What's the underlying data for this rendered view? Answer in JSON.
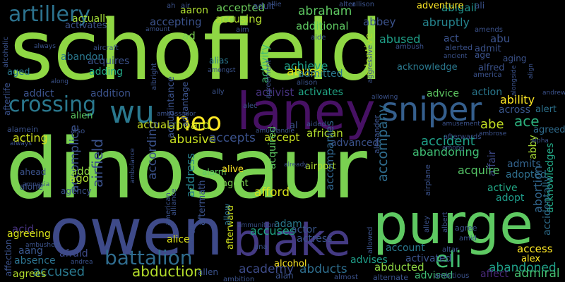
{
  "cloud": {
    "words": [
      {
        "text": "schofield",
        "color": "#8fd744"
      },
      {
        "text": "dinosaur",
        "color": "#7ad151"
      },
      {
        "text": "owen",
        "color": "#3e4a89"
      },
      {
        "text": "purge",
        "color": "#5ec962"
      },
      {
        "text": "laney",
        "color": "#471164"
      },
      {
        "text": "blake",
        "color": "#443a83"
      },
      {
        "text": "wu",
        "color": "#2a788e"
      },
      {
        "text": "sniper",
        "color": "#355f8d"
      },
      {
        "text": "neo",
        "color": "#fde725"
      },
      {
        "text": "artillery",
        "color": "#2c728e"
      },
      {
        "text": "crossing",
        "color": "#2a788e"
      },
      {
        "text": "battalion",
        "color": "#2f6c8e"
      },
      {
        "text": "eli",
        "color": "#42be71"
      },
      {
        "text": "abduction",
        "color": "#b5de2b"
      },
      {
        "text": "accused",
        "color": "#2a788e"
      },
      {
        "text": "actually",
        "color": "#a2da37"
      },
      {
        "text": "airfield",
        "color": "#3b528b"
      },
      {
        "text": "abusive",
        "color": "#c8e020"
      },
      {
        "text": "academy",
        "color": "#3e4c8a"
      },
      {
        "text": "accepted",
        "color": "#6ccd5a"
      },
      {
        "text": "abraham",
        "color": "#5ec962"
      },
      {
        "text": "abigail",
        "color": "#1f948c"
      },
      {
        "text": "abruptly",
        "color": "#25848e"
      },
      {
        "text": "abused",
        "color": "#1f9f88"
      },
      {
        "text": "accompany",
        "color": "#2f6c8e"
      },
      {
        "text": "accident",
        "color": "#1fa088"
      },
      {
        "text": "abandoning",
        "color": "#3fbc73"
      },
      {
        "text": "abandoned",
        "color": "#1fa088"
      },
      {
        "text": "african",
        "color": "#b2dd2d"
      },
      {
        "text": "accept",
        "color": "#c8e020"
      },
      {
        "text": "accepts",
        "color": "#3b528b"
      },
      {
        "text": "aboard",
        "color": "#c2df23"
      },
      {
        "text": "according",
        "color": "#3b528b"
      },
      {
        "text": "accomplice",
        "color": "#3b528b"
      },
      {
        "text": "acting",
        "color": "#d0e11c"
      },
      {
        "text": "add",
        "color": "#8fd744"
      },
      {
        "text": "ago",
        "color": "#addc30"
      },
      {
        "text": "address",
        "color": "#26828e"
      },
      {
        "text": "accusing",
        "color": "#b2dd2d"
      },
      {
        "text": "activity",
        "color": "#3fbc73"
      },
      {
        "text": "achieve",
        "color": "#1fa088"
      },
      {
        "text": "abuse",
        "color": "#dde318"
      },
      {
        "text": "activist",
        "color": "#46327e"
      },
      {
        "text": "activates",
        "color": "#21a685"
      },
      {
        "text": "advice",
        "color": "#5ec962"
      },
      {
        "text": "action",
        "color": "#2a788e"
      },
      {
        "text": "ability",
        "color": "#fde725"
      },
      {
        "text": "ace",
        "color": "#2cb17e"
      },
      {
        "text": "abe",
        "color": "#c2df23"
      },
      {
        "text": "across",
        "color": "#39568c"
      },
      {
        "text": "alert",
        "color": "#2c728e"
      },
      {
        "text": "agreed",
        "color": "#2f6c8e"
      },
      {
        "text": "abby",
        "color": "#a8db34"
      },
      {
        "text": "affair",
        "color": "#3e4a89"
      },
      {
        "text": "admits",
        "color": "#33638d"
      },
      {
        "text": "adopted",
        "color": "#2e6f8e"
      },
      {
        "text": "acquire",
        "color": "#56c667"
      },
      {
        "text": "active",
        "color": "#22a785"
      },
      {
        "text": "adopt",
        "color": "#1e9b8a"
      },
      {
        "text": "abortion",
        "color": "#31668e"
      },
      {
        "text": "acknowledges",
        "color": "#22a785"
      },
      {
        "text": "accidentally",
        "color": "#2e6e8e"
      },
      {
        "text": "admiral",
        "color": "#44bf70"
      },
      {
        "text": "access",
        "color": "#fde725"
      },
      {
        "text": "alex",
        "color": "#fde725"
      },
      {
        "text": "affect",
        "color": "#482979"
      },
      {
        "text": "advised",
        "color": "#3fbc73"
      },
      {
        "text": "abducted",
        "color": "#8fd744"
      },
      {
        "text": "abducts",
        "color": "#2e6e8e"
      },
      {
        "text": "advises",
        "color": "#1f9e89"
      },
      {
        "text": "account",
        "color": "#2a788e"
      },
      {
        "text": "activated",
        "color": "#3b528b"
      },
      {
        "text": "accuses",
        "color": "#20a486"
      },
      {
        "text": "actress",
        "color": "#3b528b"
      },
      {
        "text": "actor",
        "color": "#39568c"
      },
      {
        "text": "adam",
        "color": "#2a788e"
      },
      {
        "text": "afford",
        "color": "#d8e219"
      },
      {
        "text": "acquired",
        "color": "#5ec962"
      },
      {
        "text": "alive",
        "color": "#fde725"
      },
      {
        "text": "agent",
        "color": "#7ad151"
      },
      {
        "text": "airport",
        "color": "#addc30"
      },
      {
        "text": "advanced",
        "color": "#3b528b"
      },
      {
        "text": "accompanies",
        "color": "#31668e"
      },
      {
        "text": "alarm",
        "color": "#5ec962"
      },
      {
        "text": "actual",
        "color": "#c8e020"
      },
      {
        "text": "aftermath",
        "color": "#3b528b"
      },
      {
        "text": "afterward",
        "color": "#d0e11c"
      },
      {
        "text": "allow",
        "color": "#2c728e"
      },
      {
        "text": "alice",
        "color": "#dde318"
      },
      {
        "text": "alcohol",
        "color": "#fde725"
      },
      {
        "text": "alien",
        "color": "#5ec962"
      },
      {
        "text": "absence",
        "color": "#2c728e"
      },
      {
        "text": "acid",
        "color": "#46327e"
      },
      {
        "text": "aang",
        "color": "#39568c"
      },
      {
        "text": "afraid",
        "color": "#3e4a89"
      },
      {
        "text": "agrees",
        "color": "#b2dd2d"
      },
      {
        "text": "agreeing",
        "color": "#d8e219"
      },
      {
        "text": "agency",
        "color": "#3b528b"
      },
      {
        "text": "ahead",
        "color": "#3b528b"
      },
      {
        "text": "alone",
        "color": "#3b528b"
      },
      {
        "text": "addict",
        "color": "#3b528b"
      },
      {
        "text": "addition",
        "color": "#3b528b"
      },
      {
        "text": "aged",
        "color": "#2a788e"
      },
      {
        "text": "adding",
        "color": "#22a785"
      },
      {
        "text": "acquires",
        "color": "#3b528b"
      },
      {
        "text": "abandon",
        "color": "#2a788e"
      },
      {
        "text": "activates",
        "color": "#3b528b"
      },
      {
        "text": "accepting",
        "color": "#3b528b"
      },
      {
        "text": "aaron",
        "color": "#addc30"
      },
      {
        "text": "ad",
        "color": "#7ad151"
      },
      {
        "text": "adult",
        "color": "#3b528b"
      },
      {
        "text": "additional",
        "color": "#5ec962"
      },
      {
        "text": "abbey",
        "color": "#3b528b"
      },
      {
        "text": "act",
        "color": "#3b528b"
      },
      {
        "text": "abu",
        "color": "#3b528b"
      },
      {
        "text": "admit",
        "color": "#3b528b"
      },
      {
        "text": "age",
        "color": "#3b528b"
      },
      {
        "text": "aging",
        "color": "#3b528b"
      },
      {
        "text": "alfred",
        "color": "#3b528b"
      },
      {
        "text": "alias",
        "color": "#2a788e"
      },
      {
        "text": "admitted",
        "color": "#2a788e"
      },
      {
        "text": "adoptive",
        "color": "#addc30"
      },
      {
        "text": "acknowledge",
        "color": "#2a788e"
      },
      {
        "text": "adventure",
        "color": "#fde725"
      },
      {
        "text": "ali",
        "color": "#3b528b"
      },
      {
        "text": "alter",
        "color": "#3b528b"
      },
      {
        "text": "allison",
        "color": "#3b528b"
      },
      {
        "text": "allie",
        "color": "#3b528b"
      },
      {
        "text": "aim",
        "color": "#3b528b"
      },
      {
        "text": "ah",
        "color": "#3b528b"
      },
      {
        "text": "air",
        "color": "#3b528b"
      },
      {
        "text": "alerted",
        "color": "#3b528b"
      },
      {
        "text": "amends",
        "color": "#3b528b"
      },
      {
        "text": "ambush",
        "color": "#3b528b"
      },
      {
        "text": "aide",
        "color": "#3b528b"
      },
      {
        "text": "amount",
        "color": "#3b528b"
      },
      {
        "text": "aircraft",
        "color": "#3b528b"
      },
      {
        "text": "always",
        "color": "#3b528b"
      },
      {
        "text": "along",
        "color": "#3b528b"
      },
      {
        "text": "alison",
        "color": "#3b528b"
      },
      {
        "text": "ally",
        "color": "#3b528b"
      },
      {
        "text": "alec",
        "color": "#3b528b"
      },
      {
        "text": "amulet",
        "color": "#3b528b"
      },
      {
        "text": "andie",
        "color": "#3b528b"
      },
      {
        "text": "al",
        "color": "#3b528b"
      },
      {
        "text": "aided",
        "color": "#3b528b"
      },
      {
        "text": "among",
        "color": "#3b528b"
      },
      {
        "text": "amusement",
        "color": "#3b528b"
      },
      {
        "text": "ambrose",
        "color": "#3b528b"
      },
      {
        "text": "alpha",
        "color": "#3b528b"
      },
      {
        "text": "andrew",
        "color": "#3b528b"
      },
      {
        "text": "already",
        "color": "#3b528b"
      },
      {
        "text": "alexander",
        "color": "#3b528b"
      },
      {
        "text": "airplane",
        "color": "#3b528b"
      },
      {
        "text": "afterwards",
        "color": "#3b528b"
      },
      {
        "text": "ambassador",
        "color": "#3b528b"
      },
      {
        "text": "also",
        "color": "#3b528b"
      },
      {
        "text": "alamein",
        "color": "#3b528b"
      },
      {
        "text": "always",
        "color": "#3b528b"
      },
      {
        "text": "ambulance",
        "color": "#3b528b"
      },
      {
        "text": "ammunition",
        "color": "#3b528b"
      },
      {
        "text": "american",
        "color": "#3b528b"
      },
      {
        "text": "alliance",
        "color": "#3b528b"
      },
      {
        "text": "although",
        "color": "#3b528b"
      },
      {
        "text": "ambushed",
        "color": "#3b528b"
      },
      {
        "text": "andrea",
        "color": "#3b528b"
      },
      {
        "text": "affection",
        "color": "#3b528b"
      },
      {
        "text": "afterlife",
        "color": "#3b528b"
      },
      {
        "text": "alcoholic",
        "color": "#3b528b"
      },
      {
        "text": "amnesia",
        "color": "#3b528b"
      },
      {
        "text": "ana",
        "color": "#3b528b"
      },
      {
        "text": "allen",
        "color": "#3b528b"
      },
      {
        "text": "ambition",
        "color": "#3b528b"
      },
      {
        "text": "alan",
        "color": "#3b528b"
      },
      {
        "text": "almost",
        "color": "#3b528b"
      },
      {
        "text": "alternate",
        "color": "#3b528b"
      },
      {
        "text": "ambitious",
        "color": "#3b528b"
      },
      {
        "text": "allowed",
        "color": "#3b528b"
      },
      {
        "text": "altar",
        "color": "#3b528b"
      },
      {
        "text": "albert",
        "color": "#3b528b"
      },
      {
        "text": "alley",
        "color": "#3b528b"
      },
      {
        "text": "amid",
        "color": "#3b528b"
      },
      {
        "text": "agree",
        "color": "#3b528b"
      },
      {
        "text": "alongside",
        "color": "#3b528b"
      },
      {
        "text": "ancient",
        "color": "#3b528b"
      },
      {
        "text": "america",
        "color": "#3b528b"
      },
      {
        "text": "align",
        "color": "#3b528b"
      },
      {
        "text": "aggressive",
        "color": "#3b528b"
      },
      {
        "text": "amongst",
        "color": "#3b528b"
      },
      {
        "text": "agreement",
        "color": "#3b528b"
      },
      {
        "text": "albright",
        "color": "#3b528b"
      },
      {
        "text": "advantage",
        "color": "#3b528b"
      },
      {
        "text": "acquaintance",
        "color": "#3b528b"
      },
      {
        "text": "allowing",
        "color": "#3b528b"
      }
    ]
  }
}
